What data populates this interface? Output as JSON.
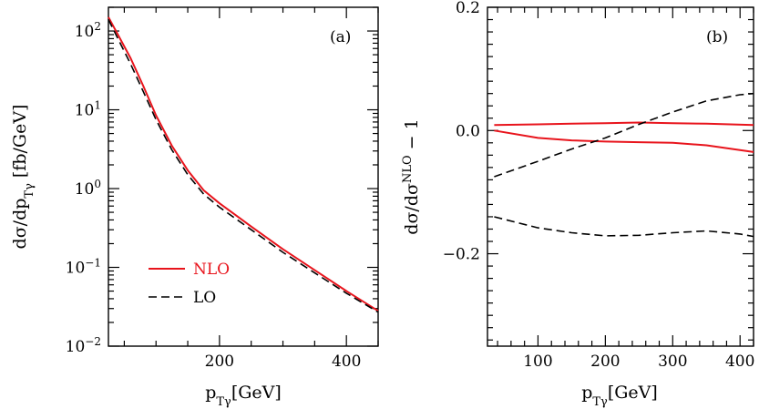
{
  "chart_data": [
    {
      "type": "line",
      "panel_label": "(a)",
      "yscale": "log",
      "ylabel": "dσ/dp_{Tγ} [fb/GeV]",
      "xlabel": "p_{Tγ}[GeV]",
      "xlim": [
        25,
        450
      ],
      "ylim": [
        0.01,
        200
      ],
      "xticks": [
        200,
        400
      ],
      "xtick_labels": [
        "200",
        "400"
      ],
      "ytick_labels": [
        {
          "value": 100,
          "base": "10",
          "exp": "2"
        },
        {
          "value": 10,
          "base": "10",
          "exp": "1"
        },
        {
          "value": 1,
          "base": "10",
          "exp": "0"
        },
        {
          "value": 0.1,
          "base": "10",
          "exp": "−1"
        },
        {
          "value": 0.01,
          "base": "10",
          "exp": "−2"
        }
      ],
      "series": [
        {
          "name": "NLO",
          "color": "#e8141c",
          "dash": "solid",
          "x": [
            25,
            40,
            60,
            80,
            100,
            125,
            150,
            175,
            200,
            250,
            300,
            350,
            400,
            450
          ],
          "y": [
            150,
            90,
            45,
            20,
            8.5,
            3.5,
            1.7,
            0.95,
            0.65,
            0.33,
            0.17,
            0.092,
            0.05,
            0.028
          ]
        },
        {
          "name": "LO",
          "color": "#000000",
          "dash": "dashed",
          "x": [
            25,
            40,
            60,
            80,
            100,
            125,
            150,
            175,
            200,
            250,
            300,
            350,
            400,
            450
          ],
          "y": [
            140,
            80,
            38,
            17,
            7.5,
            3.1,
            1.5,
            0.85,
            0.58,
            0.3,
            0.155,
            0.085,
            0.047,
            0.027
          ]
        }
      ]
    },
    {
      "type": "line",
      "panel_label": "(b)",
      "ylabel": "dσ/dσ^{NLO} − 1",
      "xlabel": "p_{Tγ}[GeV]",
      "xlim": [
        25,
        420
      ],
      "ylim": [
        -0.35,
        0.2
      ],
      "xticks": [
        100,
        200,
        300,
        400
      ],
      "xtick_labels": [
        "100",
        "200",
        "300",
        "400"
      ],
      "yticks": [
        0.2,
        0.0,
        -0.2
      ],
      "ytick_labels": [
        "0.2",
        "0.0",
        "−0.2"
      ],
      "series": [
        {
          "name": "NLO upper",
          "color": "#e8141c",
          "dash": "solid",
          "x": [
            35,
            100,
            150,
            200,
            250,
            300,
            350,
            420
          ],
          "y": [
            0.009,
            0.01,
            0.011,
            0.012,
            0.013,
            0.012,
            0.011,
            0.009
          ]
        },
        {
          "name": "NLO lower",
          "color": "#e8141c",
          "dash": "solid",
          "x": [
            35,
            100,
            150,
            200,
            250,
            300,
            350,
            420
          ],
          "y": [
            0.0,
            -0.012,
            -0.016,
            -0.018,
            -0.019,
            -0.02,
            -0.024,
            -0.035
          ]
        },
        {
          "name": "LO upper",
          "color": "#000000",
          "dash": "dashed",
          "x": [
            35,
            100,
            150,
            200,
            250,
            300,
            350,
            400,
            420
          ],
          "y": [
            -0.075,
            -0.05,
            -0.03,
            -0.012,
            0.01,
            0.03,
            0.048,
            0.058,
            0.06
          ]
        },
        {
          "name": "LO lower",
          "color": "#000000",
          "dash": "dashed",
          "x": [
            35,
            100,
            150,
            200,
            250,
            300,
            350,
            400,
            420
          ],
          "y": [
            -0.14,
            -0.158,
            -0.166,
            -0.171,
            -0.17,
            -0.166,
            -0.163,
            -0.168,
            -0.172
          ]
        }
      ]
    }
  ],
  "legend": {
    "nlo_label": "NLO",
    "lo_label": "LO"
  },
  "labels": {
    "a_ylabel_main": "dσ/dp",
    "a_ylabel_sub": "Tγ",
    "a_ylabel_unit": " [fb/GeV]",
    "b_ylabel_main": "dσ/dσ",
    "b_ylabel_sup": "NLO",
    "b_ylabel_tail": " − 1",
    "xlabel_main": "p",
    "xlabel_sub": "Tγ",
    "xlabel_unit": "[GeV]"
  }
}
